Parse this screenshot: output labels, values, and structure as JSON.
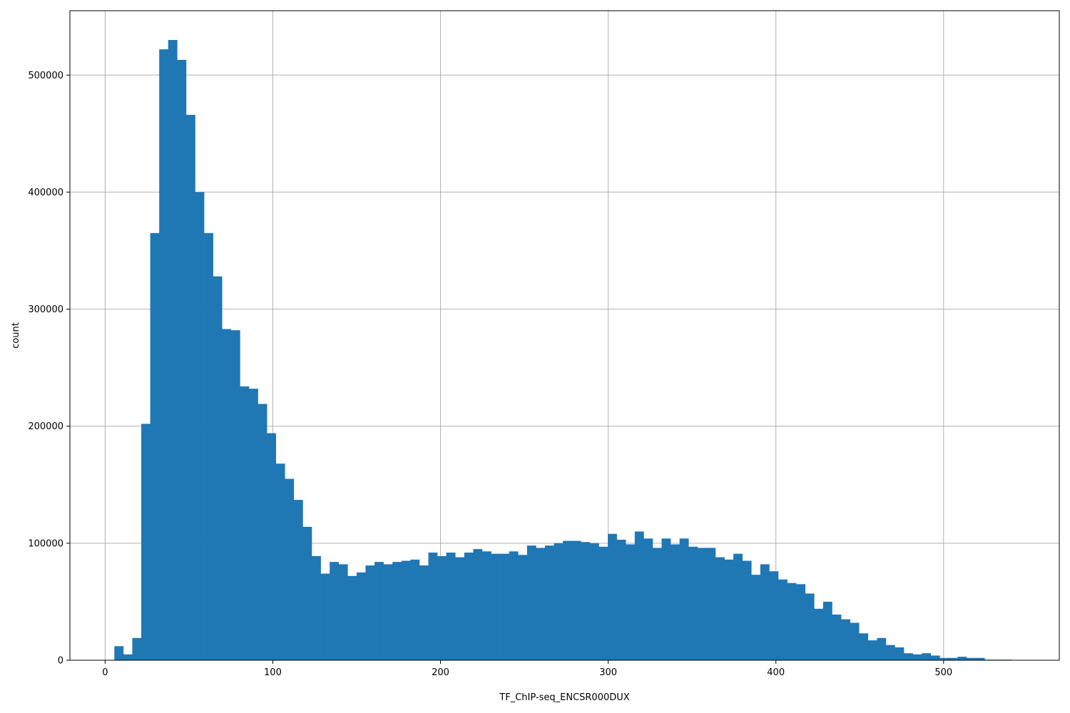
{
  "chart_data": {
    "type": "bar",
    "title": "",
    "xlabel": "TF_ChIP-seq_ENCSR000DUX",
    "ylabel": "count",
    "xlim": [
      -21,
      569
    ],
    "ylim": [
      0,
      555000
    ],
    "x_ticks": [
      0,
      100,
      200,
      300,
      400,
      500
    ],
    "y_ticks": [
      0,
      100000,
      200000,
      300000,
      400000,
      500000
    ],
    "grid": true,
    "bar_color": "#1f77b4",
    "bin_edges": [
      5.5,
      10.85,
      16.2,
      21.55,
      26.9,
      32.25,
      37.6,
      42.95,
      48.3,
      53.65,
      59.0,
      64.35,
      69.7,
      75.05,
      80.4,
      85.75,
      91.1,
      96.45,
      101.8,
      107.15,
      112.5,
      117.85,
      123.2,
      128.55,
      133.9,
      139.25,
      144.6,
      149.95,
      155.3,
      160.65,
      166.0,
      171.35,
      176.7,
      182.05,
      187.4,
      192.75,
      198.1,
      203.45,
      208.8,
      214.15,
      219.5,
      224.85,
      230.2,
      235.55,
      240.9,
      246.25,
      251.6,
      256.95,
      262.3,
      267.65,
      273.0,
      278.35,
      283.7,
      289.05,
      294.4,
      299.75,
      305.1,
      310.45,
      315.8,
      321.15,
      326.5,
      331.85,
      337.2,
      342.55,
      347.9,
      353.25,
      358.6,
      363.95,
      369.3,
      374.65,
      380.0,
      385.35,
      390.7,
      396.05,
      401.4,
      406.75,
      412.1,
      417.45,
      422.8,
      428.15,
      433.5,
      438.85,
      444.2,
      449.55,
      454.9,
      460.25,
      465.6,
      470.95,
      476.3,
      481.65,
      487.0,
      492.35,
      497.7,
      503.05,
      508.4,
      513.75,
      519.1,
      524.45,
      529.8,
      535.15,
      540.5
    ],
    "counts": [
      12000,
      5000,
      19000,
      202000,
      365000,
      522000,
      530000,
      513000,
      466000,
      400000,
      365000,
      328000,
      283000,
      282000,
      234000,
      232000,
      219000,
      194000,
      168000,
      155000,
      137000,
      114000,
      89000,
      74000,
      84000,
      82000,
      72000,
      75000,
      81000,
      84000,
      82000,
      84000,
      85000,
      86000,
      81000,
      92000,
      89000,
      92000,
      88000,
      92000,
      95000,
      93000,
      91000,
      91000,
      93000,
      90000,
      98000,
      96000,
      98000,
      100000,
      102000,
      102000,
      101000,
      100000,
      97000,
      108000,
      103000,
      99000,
      110000,
      104000,
      96000,
      104000,
      99000,
      104000,
      97000,
      96000,
      96000,
      88000,
      86000,
      91000,
      85000,
      73000,
      82000,
      76000,
      69000,
      66000,
      65000,
      57000,
      44000,
      50000,
      39000,
      35000,
      32000,
      23000,
      17000,
      19000,
      13000,
      11000,
      6000,
      5000,
      6000,
      4000,
      2000,
      2000,
      3000,
      2000,
      2000,
      500,
      500,
      500
    ]
  }
}
